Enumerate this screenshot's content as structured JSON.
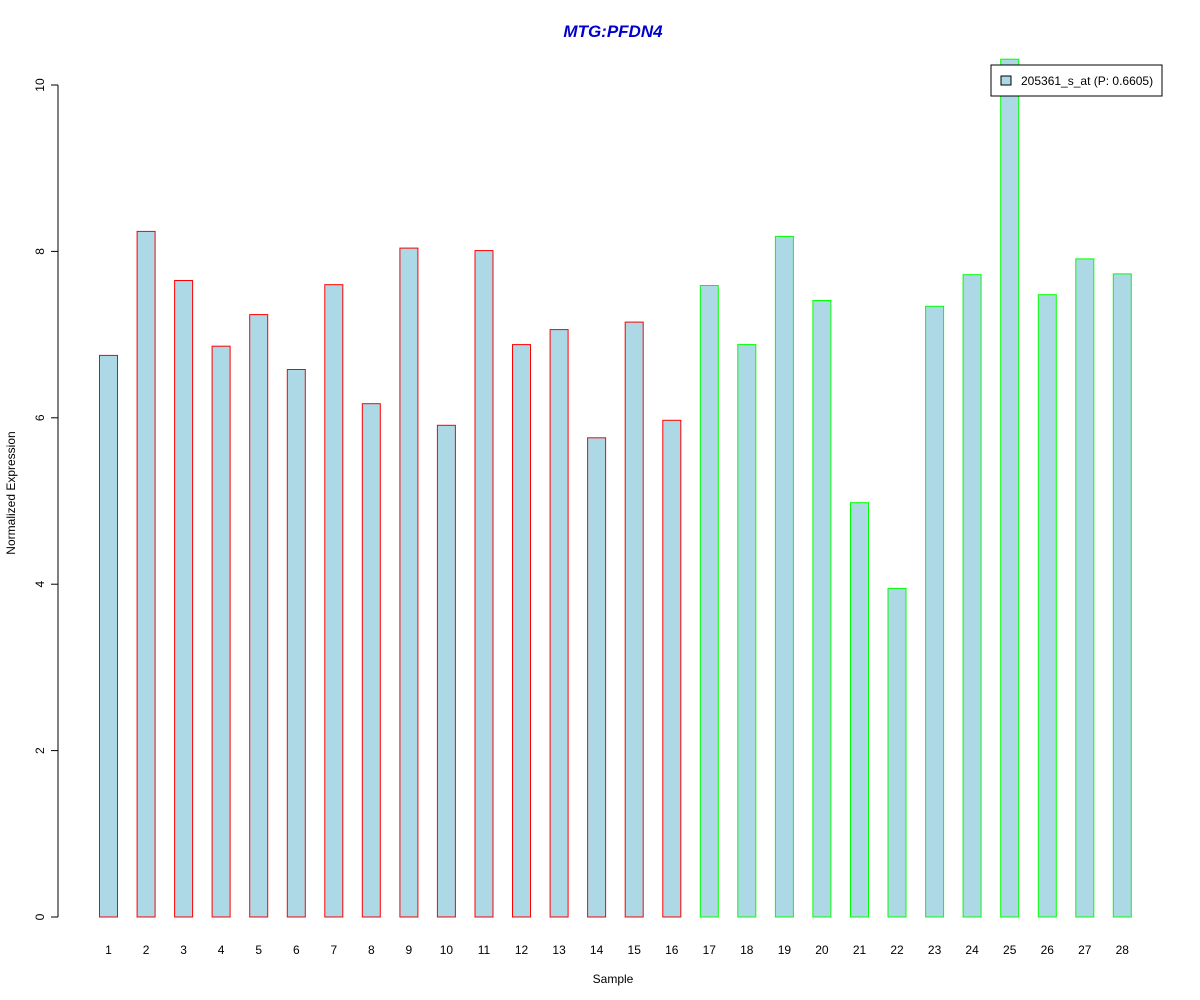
{
  "chart_data": {
    "type": "bar",
    "title": "MTG:PFDN4",
    "xlabel": "Sample",
    "ylabel": "Normalized Expression",
    "ylim": [
      0,
      10
    ],
    "yticks": [
      0,
      2,
      4,
      6,
      8,
      10
    ],
    "categories": [
      "1",
      "2",
      "3",
      "4",
      "5",
      "6",
      "7",
      "8",
      "9",
      "10",
      "11",
      "12",
      "13",
      "14",
      "15",
      "16",
      "17",
      "18",
      "19",
      "20",
      "21",
      "22",
      "23",
      "24",
      "25",
      "26",
      "27",
      "28"
    ],
    "values": [
      6.75,
      8.24,
      7.65,
      6.86,
      7.24,
      6.58,
      7.6,
      6.17,
      8.04,
      5.91,
      8.01,
      6.88,
      7.06,
      5.76,
      7.15,
      5.97,
      7.59,
      6.88,
      8.18,
      7.41,
      4.98,
      3.95,
      7.34,
      7.72,
      10.31,
      7.48,
      7.91,
      7.73
    ],
    "groups": [
      1,
      1,
      1,
      1,
      1,
      1,
      1,
      1,
      1,
      1,
      1,
      1,
      1,
      1,
      1,
      1,
      2,
      2,
      2,
      2,
      2,
      2,
      2,
      2,
      2,
      2,
      2,
      2
    ],
    "grid": false,
    "legend": {
      "position": "top-right",
      "entries": [
        {
          "label": "205361_s_at (P: 0.6605)",
          "color": "#add8e6"
        }
      ]
    },
    "colors": {
      "bar_fill": "#add8e6",
      "group1_border": "#ff0000",
      "group2_border": "#00ff00",
      "title": "#0000cc"
    }
  }
}
